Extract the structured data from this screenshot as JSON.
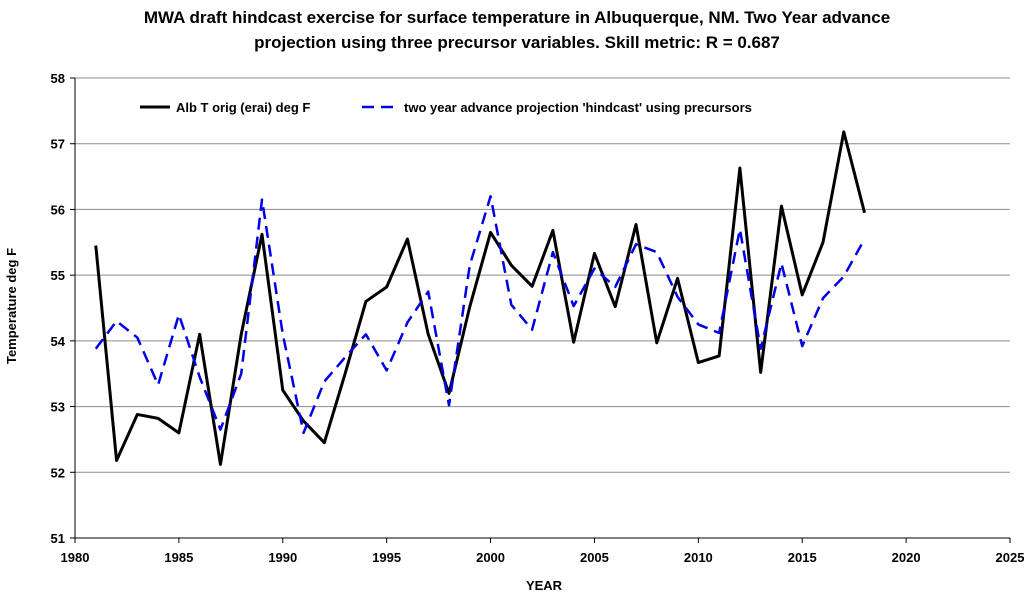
{
  "chart_data": {
    "type": "line",
    "title_lines": [
      "MWA draft hindcast exercise for surface temperature in Albuquerque, NM.  Two Year advance",
      "projection using three precursor variables.   Skill metric:  R = 0.687"
    ],
    "xlabel": "YEAR",
    "ylabel": "Temperature deg F",
    "xlim": [
      1980,
      2025
    ],
    "ylim": [
      51,
      58
    ],
    "xticks": [
      1980,
      1985,
      1990,
      1995,
      2000,
      2005,
      2010,
      2015,
      2020,
      2025
    ],
    "yticks": [
      51,
      52,
      53,
      54,
      55,
      56,
      57,
      58
    ],
    "grid": "horizontal",
    "legend_position": "top",
    "series": [
      {
        "name": "Alb T orig (erai) deg F",
        "color": "#000000",
        "style": "solid",
        "x": [
          1981,
          1982,
          1983,
          1984,
          1985,
          1986,
          1987,
          1988,
          1989,
          1990,
          1991,
          1992,
          1993,
          1994,
          1995,
          1996,
          1997,
          1998,
          1999,
          2000,
          2001,
          2002,
          2003,
          2004,
          2005,
          2006,
          2007,
          2008,
          2009,
          2010,
          2011,
          2012,
          2013,
          2014,
          2015,
          2016,
          2017,
          2018
        ],
        "y": [
          55.45,
          52.18,
          52.88,
          52.82,
          52.6,
          54.1,
          52.12,
          54.1,
          55.62,
          53.25,
          52.78,
          52.45,
          53.5,
          54.6,
          54.82,
          55.55,
          54.1,
          53.2,
          54.52,
          55.65,
          55.15,
          54.83,
          55.68,
          53.98,
          55.33,
          54.52,
          55.77,
          53.97,
          54.95,
          53.67,
          53.77,
          56.63,
          53.52,
          56.05,
          54.7,
          55.5,
          57.18,
          55.95
        ]
      },
      {
        "name": "two year advance projection 'hindcast' using precursors",
        "color": "#0000e6",
        "style": "dashed",
        "x": [
          1981,
          1982,
          1983,
          1984,
          1985,
          1986,
          1987,
          1988,
          1989,
          1990,
          1991,
          1992,
          1993,
          1994,
          1995,
          1996,
          1997,
          1998,
          1999,
          2000,
          2001,
          2002,
          2003,
          2004,
          2005,
          2006,
          2007,
          2008,
          2009,
          2010,
          2011,
          2012,
          2013,
          2014,
          2015,
          2016,
          2017,
          2018
        ],
        "y": [
          53.88,
          54.3,
          54.05,
          53.33,
          54.4,
          53.45,
          52.65,
          53.5,
          56.15,
          54.1,
          52.6,
          53.38,
          53.75,
          54.1,
          53.55,
          54.28,
          54.75,
          53.02,
          55.15,
          56.2,
          54.55,
          54.17,
          55.35,
          54.53,
          55.1,
          54.82,
          55.47,
          55.35,
          54.67,
          54.25,
          54.12,
          55.7,
          53.88,
          55.18,
          53.92,
          54.65,
          54.98,
          55.55
        ]
      }
    ]
  }
}
